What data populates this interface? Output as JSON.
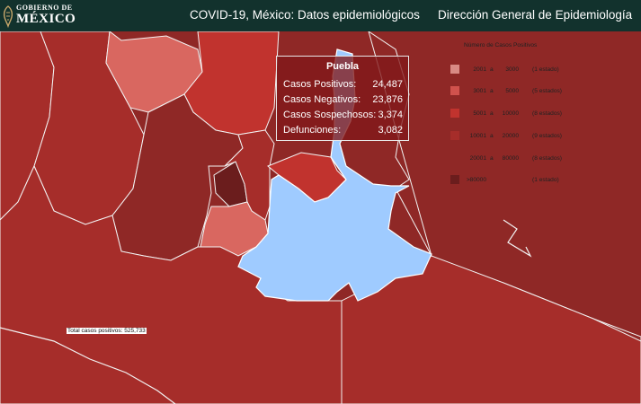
{
  "header": {
    "logo": {
      "line1": "GOBIERNO DE",
      "line2": "MÉXICO"
    },
    "title": "COVID-19, México: Datos epidemiológicos",
    "agency": "Dirección General de Epidemiología"
  },
  "map": {
    "selected_state": "Puebla",
    "colors": {
      "ocean": "#ffffff",
      "c2001_3000": "#d96760",
      "c3001_5000": "#d0524d",
      "c5001_10000": "#c1332e",
      "c10001_20000": "#a62d2a",
      "c20001_80000": "#8f2826",
      "c80000": "#6b1d1d",
      "selected": "#9fcbff",
      "border": "#f3f3f3"
    }
  },
  "tooltip": {
    "title": "Puebla",
    "rows": [
      {
        "label": "Casos Positivos:",
        "value": "24,487"
      },
      {
        "label": "Casos Negativos:",
        "value": "23,876"
      },
      {
        "label": "Casos Sospechosos:",
        "value": "3,374"
      },
      {
        "label": "Defunciones:",
        "value": "3,082"
      }
    ]
  },
  "legend": {
    "title": "Número de Casos Positivos",
    "items": [
      {
        "min": "2001",
        "sep": "a",
        "max": "3000",
        "count": "(1 estado)",
        "color": "#d98a84"
      },
      {
        "min": "3001",
        "sep": "a",
        "max": "5000",
        "count": "(5 estados)",
        "color": "#d0524d"
      },
      {
        "min": "5001",
        "sep": "a",
        "max": "10000",
        "count": "(8 estados)",
        "color": "#c1332e"
      },
      {
        "min": "10001",
        "sep": "a",
        "max": "20000",
        "count": "(9 estados)",
        "color": "#a62d2a"
      },
      {
        "min": "20001",
        "sep": "a",
        "max": "80000",
        "count": "(8 estados)",
        "color": "#8f2826"
      },
      {
        "min": ">80000",
        "sep": "",
        "max": "",
        "count": "(1 estado)",
        "color": "#6b1d1d"
      }
    ]
  },
  "summary": {
    "total_label": "Total casos positivos: 525,733"
  }
}
